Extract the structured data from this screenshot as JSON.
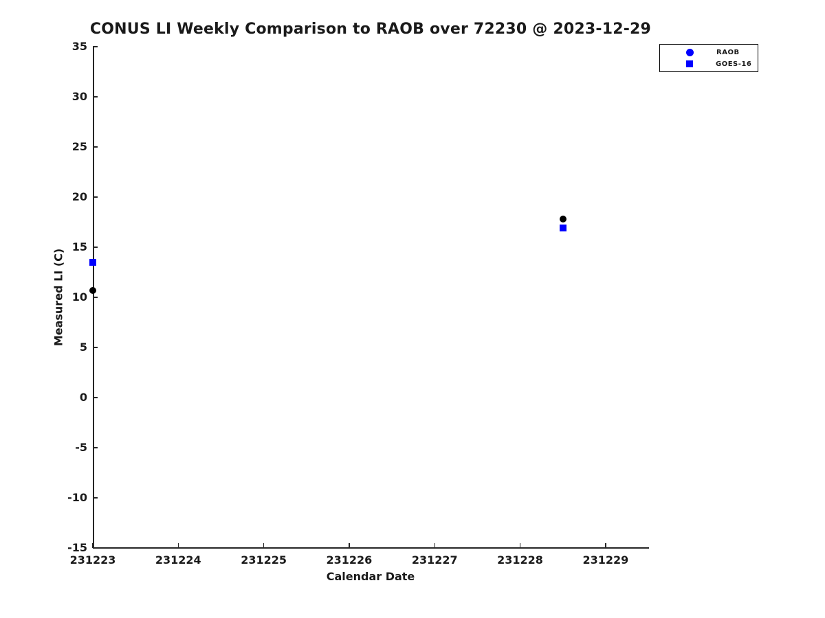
{
  "chart_data": {
    "type": "scatter",
    "title": "CONUS LI Weekly Comparison to RAOB over 72230 @ 2023-12-29",
    "xlabel": "Calendar Date",
    "ylabel": "Measured LI (C)",
    "xlim": [
      231223,
      231229.5
    ],
    "ylim": [
      -15,
      35
    ],
    "x_ticks": [
      231223,
      231224,
      231225,
      231226,
      231227,
      231228,
      231229
    ],
    "y_ticks": [
      35,
      30,
      25,
      20,
      15,
      10,
      5,
      0,
      -5,
      -10,
      -15
    ],
    "grid": false,
    "axis_color": "#262626",
    "text_color": "#1a1a1a",
    "legend": {
      "position": "top-right",
      "entries": [
        {
          "label": "RAOB",
          "marker": "circle",
          "color": "#0000ff"
        },
        {
          "label": "GOES-16",
          "marker": "square",
          "color": "#0000ff"
        }
      ]
    },
    "series": [
      {
        "name": "RAOB",
        "marker": "circle",
        "color": "#000000",
        "points": [
          {
            "x": 231223,
            "y": 10.7
          },
          {
            "x": 231228.5,
            "y": 17.8
          }
        ]
      },
      {
        "name": "GOES-16",
        "marker": "square",
        "color": "#0000ff",
        "points": [
          {
            "x": 231223,
            "y": 13.5
          },
          {
            "x": 231228.5,
            "y": 16.9
          }
        ]
      }
    ]
  }
}
